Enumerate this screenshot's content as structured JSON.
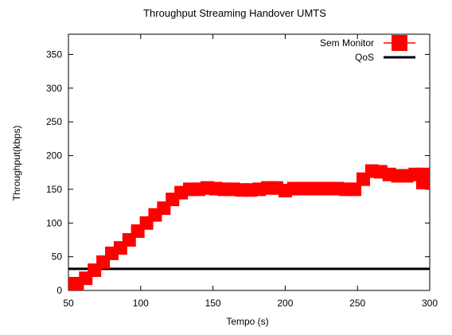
{
  "chart_data": {
    "type": "line",
    "title": "Throughput Streaming Handover UMTS",
    "xlabel": "Tempo (s)",
    "ylabel": "Throughput(kbps)",
    "xlim": [
      50,
      300
    ],
    "ylim": [
      0,
      380
    ],
    "xticks": [
      50,
      100,
      150,
      200,
      250,
      300
    ],
    "yticks": [
      0,
      50,
      100,
      150,
      200,
      250,
      300,
      350
    ],
    "grid": false,
    "legend_position": "top-right",
    "series": [
      {
        "name": "Sem Monitor",
        "color": "#ff0000",
        "marker": "square",
        "x": [
          50,
          56,
          62,
          68,
          74,
          80,
          86,
          92,
          98,
          104,
          110,
          116,
          122,
          128,
          134,
          140,
          146,
          152,
          158,
          164,
          170,
          176,
          182,
          188,
          194,
          200,
          206,
          212,
          218,
          224,
          230,
          236,
          242,
          248,
          254,
          260,
          266,
          272,
          278,
          284,
          290,
          296,
          300
        ],
        "y": [
          2,
          8,
          18,
          30,
          42,
          55,
          63,
          75,
          88,
          100,
          112,
          122,
          135,
          145,
          150,
          150,
          152,
          151,
          150,
          150,
          149,
          149,
          150,
          152,
          152,
          148,
          151,
          151,
          151,
          151,
          151,
          151,
          150,
          150,
          165,
          177,
          176,
          172,
          170,
          170,
          172,
          172,
          160
        ]
      },
      {
        "name": "QoS",
        "color": "#000000",
        "marker": "none",
        "x": [
          50,
          300
        ],
        "y": [
          32,
          32
        ]
      }
    ]
  }
}
